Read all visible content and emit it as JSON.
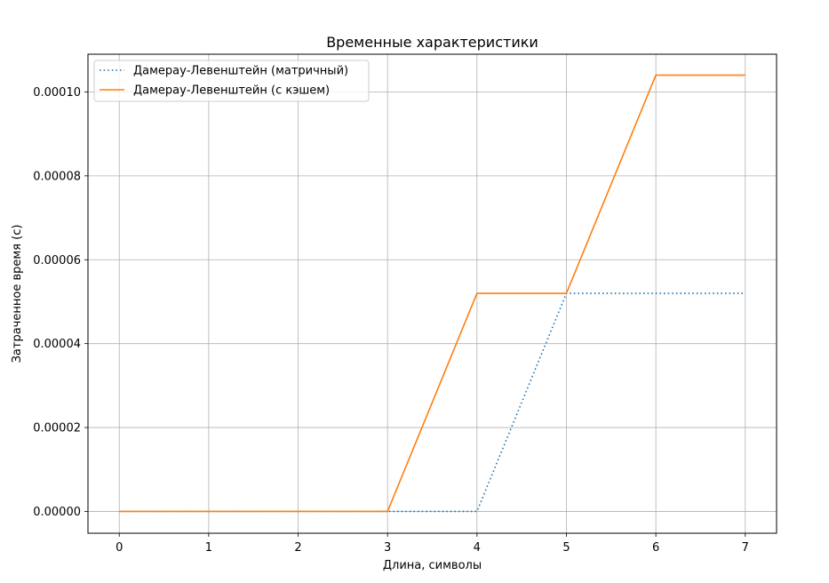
{
  "chart_data": {
    "type": "line",
    "title": "Временные характеристики",
    "xlabel": "Длина, символы",
    "ylabel": "Затраченное время (с)",
    "x": [
      0,
      1,
      2,
      3,
      4,
      5,
      6,
      7
    ],
    "xlim": [
      -0.35,
      7.35
    ],
    "ylim": [
      -5.2e-06,
      0.000109
    ],
    "xticks": [
      0,
      1,
      2,
      3,
      4,
      5,
      6,
      7
    ],
    "xtick_labels": [
      "0",
      "1",
      "2",
      "3",
      "4",
      "5",
      "6",
      "7"
    ],
    "yticks": [
      0,
      2e-05,
      4e-05,
      6e-05,
      8e-05,
      0.0001
    ],
    "ytick_labels": [
      "0.00000",
      "0.00002",
      "0.00004",
      "0.00006",
      "0.00008",
      "0.00010"
    ],
    "grid": true,
    "legend_position": "top-left",
    "series": [
      {
        "name": "Дамерау-Левенштейн (матричный)",
        "values": [
          0,
          0,
          0,
          0,
          0,
          5.2e-05,
          5.2e-05,
          5.2e-05
        ],
        "color": "#1f77b4",
        "style": "dotted"
      },
      {
        "name": "Дамерау-Левенштейн (с кэшем)",
        "values": [
          0,
          0,
          0,
          0,
          5.2e-05,
          5.2e-05,
          0.000104,
          0.000104
        ],
        "color": "#ff7f0e",
        "style": "solid"
      }
    ]
  }
}
